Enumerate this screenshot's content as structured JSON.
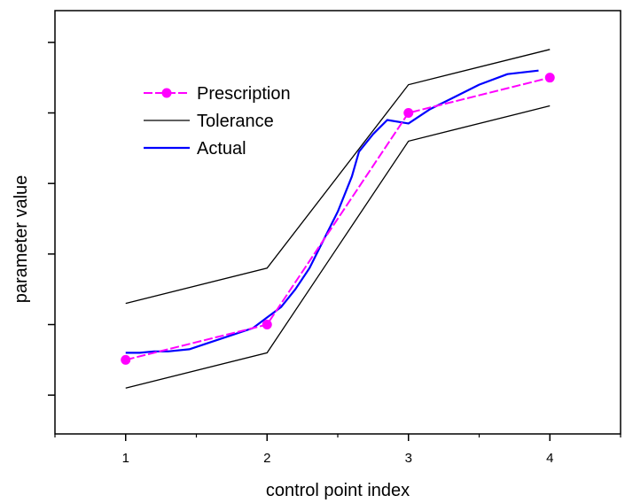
{
  "chart_data": {
    "type": "line",
    "title": "",
    "xlabel": "control point index",
    "ylabel": "parameter value",
    "x_ticks": [
      "1",
      "2",
      "3",
      "4"
    ],
    "xlim": [
      0.5,
      4.5
    ],
    "ylim": [
      0.45,
      6.45
    ],
    "y_tick_values": [
      1,
      2,
      3,
      4,
      5,
      6
    ],
    "y_tick_labels_shown": false,
    "grid": false,
    "legend_position": "top-left",
    "series": [
      {
        "name": "Prescription",
        "color": "#ff00ff",
        "style": "dashed-with-markers",
        "x": [
          1,
          2,
          3,
          4
        ],
        "y": [
          1.5,
          2.0,
          5.0,
          5.5
        ]
      },
      {
        "name": "Tolerance",
        "color": "#000000",
        "style": "thin",
        "bands": [
          {
            "x": [
              1,
              2,
              3,
              4
            ],
            "y": [
              2.3,
              2.8,
              5.4,
              5.9
            ]
          },
          {
            "x": [
              1,
              2,
              3,
              4
            ],
            "y": [
              1.1,
              1.6,
              4.6,
              5.1
            ]
          }
        ]
      },
      {
        "name": "Actual",
        "color": "#0000ff",
        "style": "solid",
        "x": [
          1.0,
          1.1,
          1.2,
          1.3,
          1.45,
          1.6,
          1.75,
          1.9,
          2.0,
          2.1,
          2.2,
          2.3,
          2.4,
          2.5,
          2.6,
          2.65,
          2.75,
          2.85,
          3.0,
          3.15,
          3.3,
          3.5,
          3.7,
          3.92
        ],
        "y": [
          1.6,
          1.6,
          1.62,
          1.62,
          1.65,
          1.75,
          1.85,
          1.95,
          2.1,
          2.25,
          2.5,
          2.8,
          3.2,
          3.6,
          4.1,
          4.45,
          4.7,
          4.9,
          4.85,
          5.05,
          5.2,
          5.4,
          5.55,
          5.6
        ]
      }
    ]
  }
}
